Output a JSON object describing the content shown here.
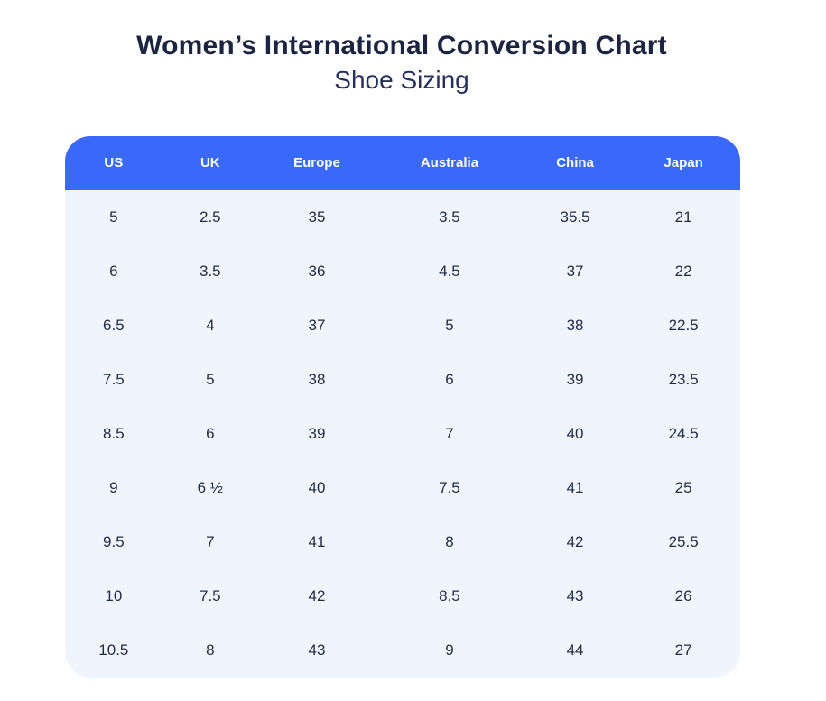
{
  "header": {
    "title": "Women’s International Conversion Chart",
    "subtitle": "Shoe Sizing"
  },
  "chart_data": {
    "type": "table",
    "title": "Women’s International Conversion Chart",
    "subtitle": "Shoe Sizing",
    "columns": [
      "US",
      "UK",
      "Europe",
      "Australia",
      "China",
      "Japan"
    ],
    "rows": [
      [
        "5",
        "2.5",
        "35",
        "3.5",
        "35.5",
        "21"
      ],
      [
        "6",
        "3.5",
        "36",
        "4.5",
        "37",
        "22"
      ],
      [
        "6.5",
        "4",
        "37",
        "5",
        "38",
        "22.5"
      ],
      [
        "7.5",
        "5",
        "38",
        "6",
        "39",
        "23.5"
      ],
      [
        "8.5",
        "6",
        "39",
        "7",
        "40",
        "24.5"
      ],
      [
        "9",
        "6 ½",
        "40",
        "7.5",
        "41",
        "25"
      ],
      [
        "9.5",
        "7",
        "41",
        "8",
        "42",
        "25.5"
      ],
      [
        "10",
        "7.5",
        "42",
        "8.5",
        "43",
        "26"
      ],
      [
        "10.5",
        "8",
        "43",
        "9",
        "44",
        "27"
      ]
    ]
  },
  "colors": {
    "header_bg": "#3A68F8",
    "header_text": "#FFFFFF",
    "body_bg": "#F0F5FD",
    "cell_text": "#232C45",
    "title_text": "#1B2440",
    "subtitle_text": "#27305A",
    "page_bg": "#FFFFFF"
  }
}
